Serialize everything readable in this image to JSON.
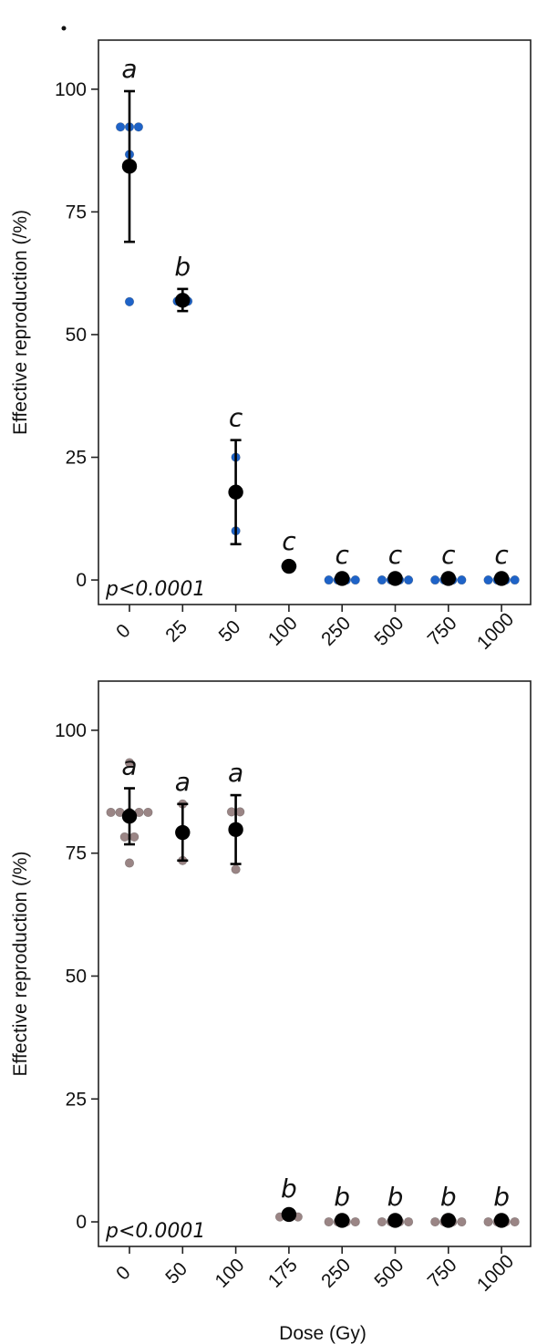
{
  "chart_data": [
    {
      "type": "scatter",
      "ylabel": "Effective reproduction (/%)",
      "xlabel": "",
      "yticks": [
        0,
        25,
        50,
        75,
        100
      ],
      "ylim": [
        -5,
        110
      ],
      "categories": [
        "0",
        "25",
        "50",
        "100",
        "250",
        "500",
        "750",
        "1000"
      ],
      "point_color": "#1e63c8",
      "mean_color": "#000000",
      "pvalue": "p<0.0001",
      "groups": [
        {
          "dose": "0",
          "mean": 84.3,
          "error_low": 68.9,
          "error_high": 99.6,
          "letter": "a",
          "points": [
            {
              "v": 92.3,
              "o": -0.17
            },
            {
              "v": 92.3,
              "o": 0.17
            },
            {
              "v": 92.3,
              "o": 0
            },
            {
              "v": 86.7,
              "o": 0
            },
            {
              "v": 56.7,
              "o": 0
            }
          ]
        },
        {
          "dose": "25",
          "mean": 57.0,
          "error_low": 54.8,
          "error_high": 59.3,
          "letter": "b",
          "points": [
            {
              "v": 56.8,
              "o": -0.1
            },
            {
              "v": 56.8,
              "o": 0.1
            }
          ]
        },
        {
          "dose": "50",
          "mean": 17.9,
          "error_low": 7.3,
          "error_high": 28.5,
          "letter": "c",
          "points": [
            {
              "v": 25.0,
              "o": 0
            },
            {
              "v": 10.0,
              "o": 0
            }
          ]
        },
        {
          "dose": "100",
          "mean": 2.8,
          "error_low": 2.2,
          "error_high": 3.4,
          "letter": "c",
          "points": [
            {
              "v": 2.8,
              "o": -0.06
            },
            {
              "v": 2.8,
              "o": 0.06
            }
          ]
        },
        {
          "dose": "250",
          "mean": 0.3,
          "error_low": 0,
          "error_high": 0.6,
          "letter": "c",
          "points": [
            {
              "v": 0,
              "o": -0.25
            },
            {
              "v": 0,
              "o": -0.08
            },
            {
              "v": 0,
              "o": 0.08
            },
            {
              "v": 0,
              "o": 0.25
            }
          ]
        },
        {
          "dose": "500",
          "mean": 0.3,
          "error_low": 0,
          "error_high": 0.6,
          "letter": "c",
          "points": [
            {
              "v": 0,
              "o": -0.25
            },
            {
              "v": 0,
              "o": -0.08
            },
            {
              "v": 0,
              "o": 0.08
            },
            {
              "v": 0,
              "o": 0.25
            }
          ]
        },
        {
          "dose": "750",
          "mean": 0.3,
          "error_low": 0,
          "error_high": 0.6,
          "letter": "c",
          "points": [
            {
              "v": 0,
              "o": -0.25
            },
            {
              "v": 0,
              "o": -0.08
            },
            {
              "v": 0,
              "o": 0.08
            },
            {
              "v": 0,
              "o": 0.25
            }
          ]
        },
        {
          "dose": "1000",
          "mean": 0.3,
          "error_low": 0,
          "error_high": 0.6,
          "letter": "c",
          "points": [
            {
              "v": 0,
              "o": -0.25
            },
            {
              "v": 0,
              "o": -0.08
            },
            {
              "v": 0,
              "o": 0.08
            },
            {
              "v": 0,
              "o": 0.25
            }
          ]
        }
      ]
    },
    {
      "type": "scatter",
      "ylabel": "Effective reproduction (/%)",
      "xlabel": "Dose (Gy)",
      "yticks": [
        0,
        25,
        50,
        75,
        100
      ],
      "ylim": [
        -5,
        110
      ],
      "categories": [
        "0",
        "50",
        "100",
        "175",
        "250",
        "500",
        "750",
        "1000"
      ],
      "point_color": "#9a8585",
      "mean_color": "#000000",
      "pvalue": "p<0.0001",
      "groups": [
        {
          "dose": "0",
          "mean": 82.5,
          "error_low": 76.8,
          "error_high": 88.2,
          "letter": "a",
          "points": [
            {
              "v": 93.4,
              "o": 0
            },
            {
              "v": 83.3,
              "o": -0.35
            },
            {
              "v": 83.3,
              "o": -0.18
            },
            {
              "v": 83.3,
              "o": 0
            },
            {
              "v": 83.3,
              "o": 0.18
            },
            {
              "v": 83.3,
              "o": 0.35
            },
            {
              "v": 78.3,
              "o": -0.09
            },
            {
              "v": 78.3,
              "o": 0.09
            },
            {
              "v": 73.0,
              "o": 0
            }
          ]
        },
        {
          "dose": "50",
          "mean": 79.2,
          "error_low": 73.5,
          "error_high": 85.0,
          "letter": "a",
          "points": [
            {
              "v": 85.0,
              "o": 0
            },
            {
              "v": 73.5,
              "o": 0
            }
          ]
        },
        {
          "dose": "100",
          "mean": 79.8,
          "error_low": 72.8,
          "error_high": 86.8,
          "letter": "a",
          "points": [
            {
              "v": 83.4,
              "o": -0.08
            },
            {
              "v": 83.4,
              "o": 0.08
            },
            {
              "v": 71.7,
              "o": 0
            }
          ]
        },
        {
          "dose": "175",
          "mean": 1.5,
          "error_low": 0.8,
          "error_high": 2.2,
          "letter": "b",
          "points": [
            {
              "v": 1.0,
              "o": -0.17
            },
            {
              "v": 1.0,
              "o": 0.17
            },
            {
              "v": 1.5,
              "o": 0
            }
          ]
        },
        {
          "dose": "250",
          "mean": 0.3,
          "error_low": 0,
          "error_high": 0.6,
          "letter": "b",
          "points": [
            {
              "v": 0,
              "o": -0.25
            },
            {
              "v": 0,
              "o": -0.08
            },
            {
              "v": 0,
              "o": 0.08
            },
            {
              "v": 0,
              "o": 0.25
            }
          ]
        },
        {
          "dose": "500",
          "mean": 0.3,
          "error_low": 0,
          "error_high": 0.6,
          "letter": "b",
          "points": [
            {
              "v": 0,
              "o": -0.25
            },
            {
              "v": 0,
              "o": -0.08
            },
            {
              "v": 0,
              "o": 0.08
            },
            {
              "v": 0,
              "o": 0.25
            }
          ]
        },
        {
          "dose": "750",
          "mean": 0.3,
          "error_low": 0,
          "error_high": 0.6,
          "letter": "b",
          "points": [
            {
              "v": 0,
              "o": -0.25
            },
            {
              "v": 0,
              "o": -0.08
            },
            {
              "v": 0,
              "o": 0.08
            },
            {
              "v": 0,
              "o": 0.25
            }
          ]
        },
        {
          "dose": "1000",
          "mean": 0.3,
          "error_low": 0,
          "error_high": 0.6,
          "letter": "b",
          "points": [
            {
              "v": 0,
              "o": -0.25
            },
            {
              "v": 0,
              "o": -0.08
            },
            {
              "v": 0,
              "o": 0.08
            },
            {
              "v": 0,
              "o": 0.25
            }
          ]
        }
      ]
    }
  ]
}
